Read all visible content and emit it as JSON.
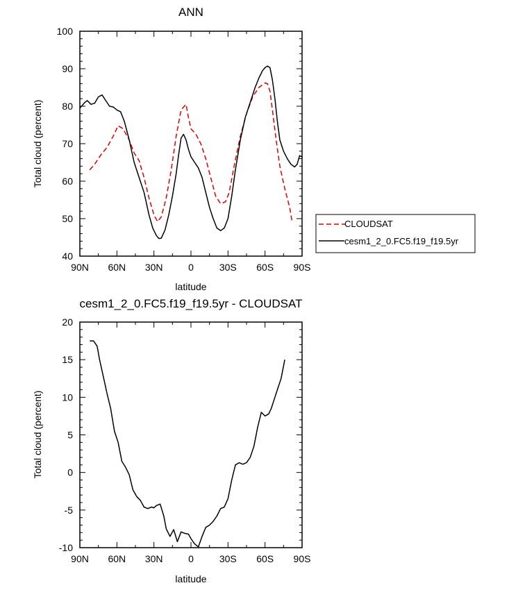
{
  "chart_data": [
    {
      "type": "line",
      "title": "ANN",
      "xlabel": "latitude",
      "ylabel": "Total cloud (percent)",
      "xlim": [
        90,
        -90
      ],
      "ylim": [
        40,
        100
      ],
      "xticks": [
        90,
        60,
        30,
        0,
        -30,
        -60,
        -90
      ],
      "xtick_labels": [
        "90N",
        "60N",
        "30N",
        "0",
        "30S",
        "60S",
        "90S"
      ],
      "yticks": [
        40,
        50,
        60,
        70,
        80,
        90,
        100
      ],
      "ytick_labels": [
        "40",
        "50",
        "60",
        "70",
        "80",
        "90",
        "100"
      ],
      "legend_position": "right",
      "series": [
        {
          "name": "CLOUDSAT",
          "color": "#dd0000",
          "dash": "dashed",
          "x": [
            82,
            78,
            73,
            68,
            63,
            59,
            55,
            50,
            46,
            42,
            38,
            34,
            30,
            27,
            24,
            20,
            16,
            12,
            8,
            4,
            2,
            0,
            -4,
            -8,
            -12,
            -16,
            -20,
            -24,
            -28,
            -31,
            -35,
            -40,
            -45,
            -50,
            -55,
            -60,
            -62,
            -64,
            -66,
            -69,
            -72,
            -76,
            -80,
            -82
          ],
          "y": [
            63,
            64.5,
            67,
            69,
            72,
            74.8,
            74,
            71,
            67.5,
            65.5,
            61,
            55.5,
            51,
            49.2,
            50.5,
            55.5,
            63,
            72,
            79,
            80.5,
            77,
            74,
            72.5,
            70,
            66,
            61,
            56,
            54,
            54.5,
            57,
            64,
            72,
            78,
            82.5,
            85,
            86.2,
            86,
            84,
            79,
            71,
            64,
            58,
            53,
            49
          ]
        },
        {
          "name": "cesm1_2_0.FC5.f19_f19.5yr",
          "color": "#000000",
          "dash": "solid",
          "x": [
            90,
            86,
            84,
            81,
            78,
            75,
            72,
            69,
            66,
            63,
            60,
            57,
            54,
            50,
            46,
            42,
            38,
            34,
            31,
            28,
            26,
            24,
            21,
            18,
            15,
            12,
            10,
            8,
            6,
            4,
            2,
            0,
            -3,
            -6,
            -9,
            -12,
            -15,
            -18,
            -21,
            -24,
            -27,
            -30,
            -33,
            -36,
            -40,
            -44,
            -48,
            -52,
            -55,
            -58,
            -60,
            -62,
            -64,
            -66,
            -68,
            -70,
            -72,
            -75,
            -78,
            -81,
            -84,
            -86,
            -88,
            -90
          ],
          "y": [
            79.5,
            81,
            81.5,
            80.5,
            80.8,
            82.5,
            83,
            81.5,
            80,
            79.8,
            79,
            78.5,
            76,
            71,
            65,
            61,
            57,
            51,
            47.5,
            45.5,
            44.7,
            44.8,
            47,
            51,
            56,
            62,
            67,
            71.5,
            72.5,
            71,
            68.5,
            66.5,
            65,
            63.5,
            61,
            57,
            53,
            50,
            47.5,
            46.8,
            47.5,
            50,
            56,
            63,
            71,
            77,
            81,
            85,
            87.5,
            89.5,
            90.3,
            90.7,
            90.3,
            87,
            82,
            76,
            71,
            68,
            66,
            64.5,
            63.8,
            64.5,
            66.8,
            66.5
          ]
        }
      ]
    },
    {
      "type": "line",
      "title": "cesm1_2_0.FC5.f19_f19.5yr - CLOUDSAT",
      "xlabel": "latitude",
      "ylabel": "Total cloud (percent)",
      "xlim": [
        90,
        -90
      ],
      "ylim": [
        -10,
        20
      ],
      "xticks": [
        90,
        60,
        30,
        0,
        -30,
        -60,
        -90
      ],
      "xtick_labels": [
        "90N",
        "60N",
        "30N",
        "0",
        "30S",
        "60S",
        "90S"
      ],
      "yticks": [
        -10,
        -5,
        0,
        5,
        10,
        15,
        20
      ],
      "ytick_labels": [
        "-10",
        "-5",
        "0",
        "5",
        "10",
        "15",
        "20"
      ],
      "series": [
        {
          "color": "#000000",
          "dash": "solid",
          "x": [
            82,
            79,
            76,
            74,
            72,
            70,
            68,
            65,
            62,
            59,
            56,
            53,
            50,
            47,
            44,
            41,
            38,
            35,
            32,
            30,
            28,
            25,
            22,
            20,
            17,
            14,
            11,
            8,
            5,
            2,
            0,
            -3,
            -6,
            -9,
            -12,
            -15,
            -18,
            -21,
            -24,
            -27,
            -30,
            -33,
            -36,
            -39,
            -42,
            -45,
            -48,
            -51,
            -54,
            -57,
            -60,
            -63,
            -65,
            -67,
            -70,
            -73,
            -76,
            -79,
            -82
          ],
          "y": [
            17.5,
            17.5,
            16.8,
            15,
            13.5,
            12,
            10.5,
            8.5,
            5.5,
            4,
            1.5,
            0.7,
            -0.3,
            -2.3,
            -3.2,
            -3.7,
            -4.6,
            -4.8,
            -4.6,
            -4.7,
            -4.4,
            -4.2,
            -5.8,
            -7.5,
            -8.5,
            -7.6,
            -9.2,
            -7.9,
            -8.1,
            -8.2,
            -8.8,
            -9.5,
            -9.9,
            -8.5,
            -7.3,
            -7.0,
            -6.5,
            -5.8,
            -4.8,
            -4.6,
            -3.5,
            -1.0,
            1.0,
            1.3,
            1.1,
            1.3,
            2.0,
            3.5,
            6.0,
            8.0,
            7.5,
            7.8,
            8.5,
            9.5,
            11.0,
            12.5,
            15.0,
            null,
            null
          ]
        }
      ]
    }
  ]
}
